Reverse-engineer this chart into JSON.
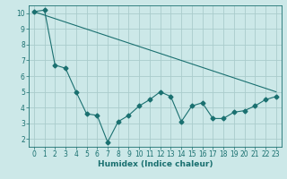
{
  "xlabel": "Humidex (Indice chaleur)",
  "ylabel": "",
  "background_color": "#cce8e8",
  "grid_color": "#aacccc",
  "line_color": "#1a7070",
  "xlim": [
    -0.5,
    23.5
  ],
  "ylim": [
    1.5,
    10.5
  ],
  "yticks": [
    2,
    3,
    4,
    5,
    6,
    7,
    8,
    9,
    10
  ],
  "xticks": [
    0,
    1,
    2,
    3,
    4,
    5,
    6,
    7,
    8,
    9,
    10,
    11,
    12,
    13,
    14,
    15,
    16,
    17,
    18,
    19,
    20,
    21,
    22,
    23
  ],
  "line1_x": [
    0,
    1,
    2,
    3,
    4,
    5,
    6,
    7,
    8,
    9,
    10,
    11,
    12,
    13,
    14,
    15,
    16,
    17,
    18,
    19,
    20,
    21,
    22,
    23
  ],
  "line1_y": [
    10.1,
    10.2,
    6.7,
    6.5,
    5.0,
    3.6,
    3.5,
    1.8,
    3.1,
    3.5,
    4.1,
    4.5,
    5.0,
    4.7,
    3.1,
    4.1,
    4.3,
    3.3,
    3.3,
    3.7,
    3.8,
    4.1,
    4.5,
    4.7
  ],
  "line2_x": [
    0,
    23
  ],
  "line2_y": [
    10.1,
    5.0
  ],
  "marker": "D",
  "marker_size": 2.5,
  "line_width": 0.8,
  "font_size": 5.5,
  "xlabel_fontsize": 6.5
}
